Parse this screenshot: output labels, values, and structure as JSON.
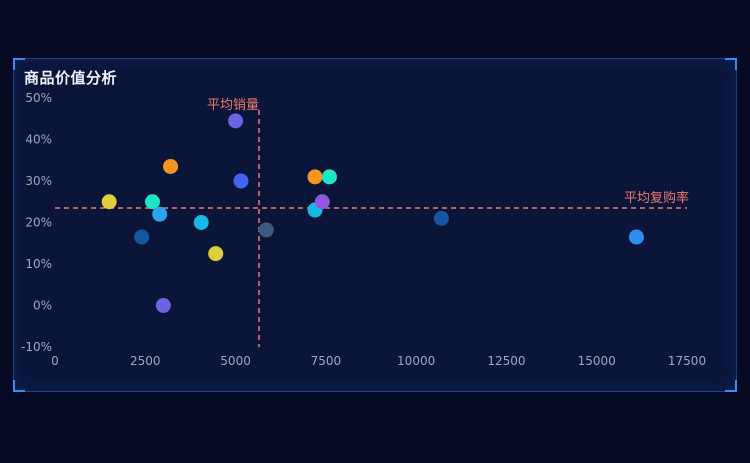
{
  "title": "商品价值分析",
  "chart_data": {
    "type": "scatter",
    "title": "商品价值分析",
    "xlabel": "",
    "ylabel": "",
    "xlim": [
      0,
      17500
    ],
    "ylim": [
      -10,
      50
    ],
    "x_ticks": [
      0,
      2500,
      5000,
      7500,
      10000,
      12500,
      15000,
      17500
    ],
    "y_ticks": [
      -10,
      0,
      10,
      20,
      30,
      40,
      50
    ],
    "y_tick_suffix": "%",
    "grid": false,
    "reference_lines": {
      "avg_sales": {
        "label": "平均销量",
        "x": 5650
      },
      "avg_repurchase": {
        "label": "平均复购率",
        "y": 23.5
      }
    },
    "points": [
      {
        "x": 1500,
        "y": 25,
        "color": "#e0cf3c"
      },
      {
        "x": 2400,
        "y": 16.5,
        "color": "#15579e"
      },
      {
        "x": 2700,
        "y": 25,
        "color": "#1de6c6"
      },
      {
        "x": 2900,
        "y": 22,
        "color": "#2fa3ee"
      },
      {
        "x": 3000,
        "y": 0,
        "color": "#6a63e6"
      },
      {
        "x": 3200,
        "y": 33.5,
        "color": "#f7961e"
      },
      {
        "x": 4050,
        "y": 20,
        "color": "#16b9e6"
      },
      {
        "x": 4450,
        "y": 12.5,
        "color": "#e0cf3c"
      },
      {
        "x": 5000,
        "y": 44.5,
        "color": "#6a63e6"
      },
      {
        "x": 5150,
        "y": 30,
        "color": "#4664f2"
      },
      {
        "x": 5850,
        "y": 18.2,
        "color": "#3d5a82"
      },
      {
        "x": 7200,
        "y": 31,
        "color": "#f7961e"
      },
      {
        "x": 7200,
        "y": 23,
        "color": "#16b9e6"
      },
      {
        "x": 7400,
        "y": 25,
        "color": "#9256e0"
      },
      {
        "x": 7600,
        "y": 31,
        "color": "#1de6c6"
      },
      {
        "x": 10700,
        "y": 21,
        "color": "#15579e"
      },
      {
        "x": 16100,
        "y": 16.5,
        "color": "#2a8ff0"
      }
    ]
  },
  "colors": {
    "background": "#060a22",
    "panel": "#0b1539",
    "reference_line": "#f07a6a",
    "axis_text": "#9aa7c4"
  }
}
